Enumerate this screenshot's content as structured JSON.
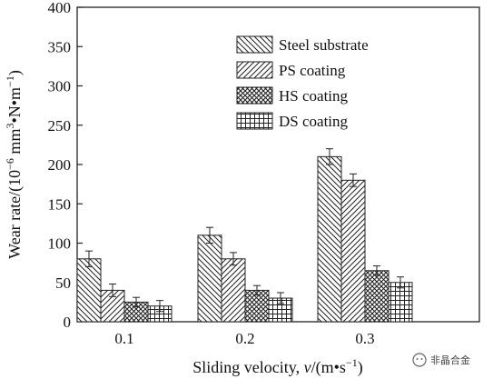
{
  "chart_data": {
    "type": "bar",
    "categories": [
      "0.1",
      "0.2",
      "0.3"
    ],
    "series": [
      {
        "name": "Steel substrate",
        "values": [
          80,
          110,
          210
        ],
        "errors": [
          10,
          10,
          10
        ],
        "pattern": "hatch-back"
      },
      {
        "name": "PS coating",
        "values": [
          40,
          80,
          180
        ],
        "errors": [
          8,
          8,
          8
        ],
        "pattern": "hatch-fwd"
      },
      {
        "name": "HS coating",
        "values": [
          25,
          40,
          65
        ],
        "errors": [
          6,
          6,
          6
        ],
        "pattern": "crosshatch"
      },
      {
        "name": "DS coating",
        "values": [
          20,
          30,
          50
        ],
        "errors": [
          7,
          7,
          7
        ],
        "pattern": "grid"
      }
    ],
    "ylim": [
      0,
      400
    ],
    "yticks": [
      "0",
      "50",
      "100",
      "150",
      "200",
      "250",
      "300",
      "350",
      "400"
    ],
    "ylabel": {
      "pre": "Wear rate/(10",
      "exp1": "−6",
      "mid": " mm",
      "exp2": "3",
      "post": "•N•m",
      "exp3": "−1",
      "end": ")"
    },
    "xlabel": {
      "pre": "Sliding velocity, ",
      "var": "v",
      "mid": "/(m•s",
      "exp": "−1",
      "end": ")"
    },
    "grid": false,
    "legend_position": "top-right",
    "colors": {
      "stroke": "#222222",
      "background": "#ffffff"
    }
  },
  "watermark": {
    "text": "非晶合金"
  }
}
